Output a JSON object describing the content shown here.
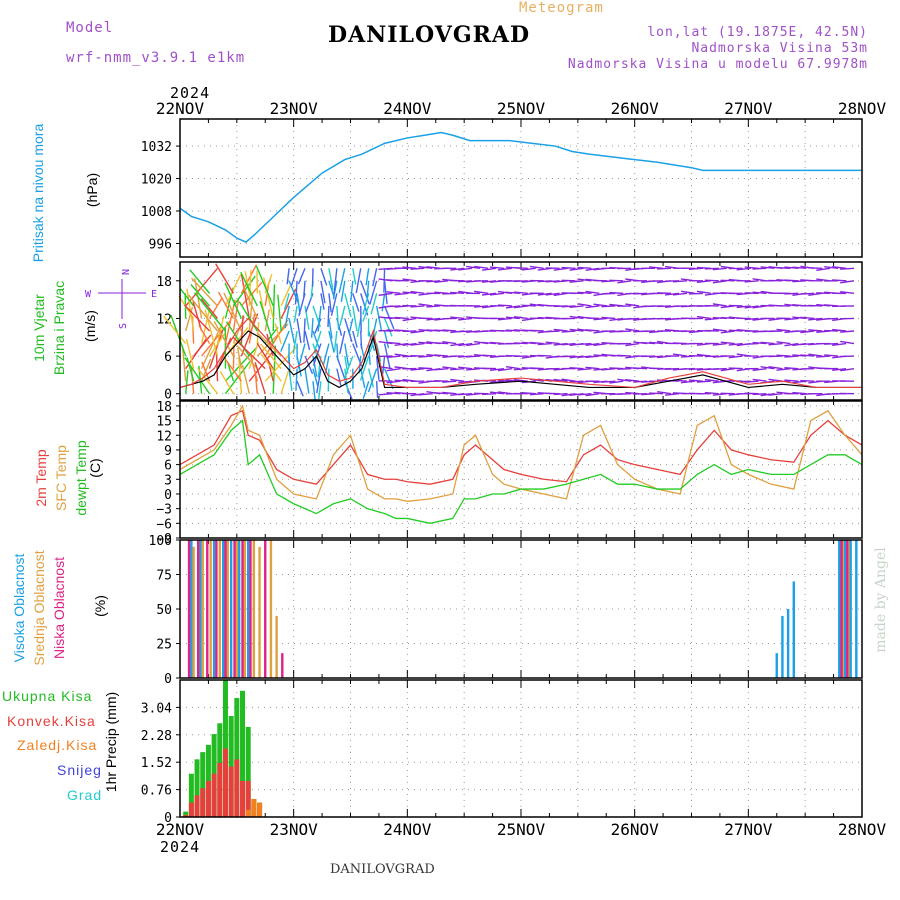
{
  "header": {
    "model_label": "Model",
    "model_name": "wrf-nmm_v3.9.1 e1km",
    "subtitle": "Meteogram",
    "title": "DANILOVGRAD",
    "lonlat": "lon,lat (19.1875E, 42.5N)",
    "altitude": "Nadmorska Visina 53m",
    "model_altitude": "Nadmorska Visina u modelu 67.9978m",
    "year": "2024",
    "footer": "DANILOVGRAD",
    "watermark": "made by Angel"
  },
  "colors": {
    "pressure": "#1aa0e6",
    "temp2m": "#e6403c",
    "sfc": "#e0a040",
    "dewpt": "#22cc22",
    "wind_purple": "#8822dd",
    "precip_total": "#22bb22",
    "precip_conv": "#e6403c",
    "precip_frozen": "#f08020",
    "snow": "#4040e0",
    "hail": "#22cccc",
    "cloud_high": "#1aa0e6",
    "cloud_mid": "#e0a040",
    "cloud_low": "#dd2288"
  },
  "chart_data": [
    {
      "type": "line",
      "panel": "pressure",
      "ylabel_1": "Pritisak na nivou mora",
      "ylabel_2": "(hPa)",
      "x_ticks": [
        "22NOV",
        "23NOV",
        "24NOV",
        "25NOV",
        "26NOV",
        "27NOV",
        "28NOV"
      ],
      "yticks": [
        "1032",
        "1020",
        "1008",
        "996"
      ],
      "ylim": [
        991,
        1042
      ],
      "x": [
        0,
        0.1,
        0.25,
        0.4,
        0.5,
        0.58,
        0.65,
        0.8,
        1.0,
        1.25,
        1.45,
        1.6,
        1.8,
        2.0,
        2.15,
        2.3,
        2.4,
        2.55,
        2.7,
        2.9,
        3.1,
        3.3,
        3.45,
        3.6,
        3.8,
        4.0,
        4.2,
        4.35,
        4.5,
        4.6,
        4.7,
        4.85,
        5.0,
        5.2,
        5.4,
        5.55,
        5.7,
        5.85,
        6.0
      ],
      "series": [
        {
          "values": [
            1009,
            1006,
            1004,
            1001,
            998,
            996.5,
            999,
            1005,
            1013,
            1022,
            1027,
            1029,
            1033,
            1035,
            1036,
            1037,
            1036,
            1034,
            1034,
            1034,
            1033,
            1032,
            1030,
            1029,
            1028,
            1027,
            1026,
            1025,
            1024,
            1023,
            1023,
            1023,
            1023,
            1023,
            1023,
            1023,
            1023,
            1023,
            1023
          ]
        }
      ]
    },
    {
      "type": "line",
      "panel": "wind",
      "ylabel_1": "10m Vjetar",
      "ylabel_1b": "Brzina i Pravac",
      "ylabel_2": "(m/s)",
      "compass": {
        "n": "N",
        "s": "S",
        "w": "W",
        "e": "E"
      },
      "yticks": [
        "18",
        "12",
        "6",
        "0"
      ],
      "ylim": [
        -1,
        21
      ],
      "x": [
        0,
        0.1,
        0.2,
        0.3,
        0.4,
        0.5,
        0.6,
        0.7,
        0.8,
        0.9,
        1.0,
        1.1,
        1.2,
        1.3,
        1.4,
        1.5,
        1.6,
        1.7,
        1.8,
        2.0,
        2.3,
        2.6,
        3.0,
        3.3,
        3.6,
        4.0,
        4.3,
        4.6,
        5.0,
        5.3,
        5.6,
        6.0
      ],
      "series": [
        {
          "name": "speed",
          "values": [
            1,
            1.5,
            2,
            3,
            6,
            8,
            10,
            9,
            7,
            5,
            3,
            4,
            6,
            2,
            1,
            2,
            4,
            9,
            1,
            1,
            1,
            1.5,
            2,
            1.5,
            1,
            1,
            2,
            3,
            1,
            1.5,
            1,
            1
          ]
        },
        {
          "name": "gust",
          "values": [
            1,
            1.5,
            2.5,
            4,
            7,
            10,
            12,
            10,
            8,
            6,
            4,
            5,
            7,
            3,
            2,
            2.5,
            5,
            10,
            1.5,
            1,
            1,
            2,
            2.5,
            2,
            1.5,
            1,
            2.5,
            3.5,
            1.5,
            2,
            1,
            1
          ]
        }
      ]
    },
    {
      "type": "line",
      "panel": "temperature",
      "ylabel_1": "2m Temp",
      "ylabel_1b": "SFC Temp",
      "ylabel_1c": "dewpt Temp",
      "ylabel_2": "(C)",
      "yticks": [
        "18",
        "15",
        "12",
        "9",
        "6",
        "3",
        "0",
        "−3",
        "−6",
        "−9"
      ],
      "ylim": [
        -9,
        19
      ],
      "x": [
        0,
        0.15,
        0.3,
        0.45,
        0.55,
        0.6,
        0.7,
        0.85,
        1.0,
        1.2,
        1.35,
        1.5,
        1.65,
        1.8,
        1.9,
        2.0,
        2.2,
        2.4,
        2.5,
        2.6,
        2.75,
        2.85,
        3.0,
        3.2,
        3.4,
        3.55,
        3.7,
        3.85,
        4.0,
        4.2,
        4.4,
        4.55,
        4.7,
        4.85,
        5.0,
        5.2,
        5.4,
        5.55,
        5.7,
        5.85,
        6.0
      ],
      "series": [
        {
          "name": "temp2m",
          "values": [
            6,
            8,
            10,
            16,
            17,
            12,
            11,
            5,
            3,
            2,
            6,
            10,
            4,
            3,
            3,
            2.5,
            2,
            3,
            8,
            10,
            7,
            5,
            4,
            3,
            2.5,
            8,
            10,
            7,
            6,
            5,
            4,
            9,
            13,
            9,
            8,
            7,
            6.5,
            12,
            15,
            12,
            10
          ]
        },
        {
          "name": "sfc",
          "values": [
            5,
            7,
            9,
            14,
            18,
            13,
            12,
            3,
            0,
            -1,
            8,
            12,
            1,
            -1,
            -1,
            -1.5,
            -1,
            0,
            10,
            12,
            4,
            2,
            1,
            0,
            -1,
            12,
            14,
            6,
            3,
            1,
            0,
            14,
            16,
            6,
            4,
            2,
            1,
            15,
            17,
            12,
            8
          ]
        },
        {
          "name": "dewpt",
          "values": [
            4,
            6,
            8,
            13,
            15,
            6,
            8,
            0,
            -2,
            -4,
            -2,
            -1,
            -3,
            -4,
            -5,
            -5,
            -6,
            -5,
            -1,
            -1,
            0,
            0,
            1,
            1,
            2,
            3,
            4,
            2,
            2,
            1,
            1,
            4,
            6,
            4,
            5,
            4,
            4,
            6,
            8,
            8,
            6
          ]
        }
      ]
    },
    {
      "type": "bar",
      "panel": "cloud",
      "ylabel_1": "Visoka Oblacnost",
      "ylabel_1b": "Srednja Oblacnost",
      "ylabel_1c": "Niska Oblacnost",
      "ylabel_2": "(%)",
      "yticks": [
        "100",
        "75",
        "50",
        "25",
        "0"
      ],
      "ylim": [
        0,
        100
      ],
      "series": [
        {
          "name": "high",
          "x": [
            0.1,
            0.18,
            0.3,
            0.38,
            0.45,
            0.52,
            0.6,
            5.25,
            5.3,
            5.35,
            5.4,
            5.8,
            5.85,
            5.9,
            5.95
          ],
          "values": [
            100,
            100,
            100,
            100,
            100,
            100,
            100,
            18,
            45,
            50,
            70,
            100,
            100,
            100,
            100
          ]
        },
        {
          "name": "mid",
          "x": [
            0.12,
            0.2,
            0.27,
            0.35,
            0.42,
            0.5,
            0.57,
            0.65,
            0.7,
            0.8,
            0.85,
            5.83,
            5.88
          ],
          "values": [
            95,
            100,
            100,
            100,
            100,
            100,
            100,
            100,
            95,
            100,
            45,
            100,
            100
          ]
        },
        {
          "name": "low",
          "x": [
            0.08,
            0.16,
            0.24,
            0.32,
            0.4,
            0.48,
            0.55,
            0.62,
            0.75,
            0.9,
            5.82,
            5.87
          ],
          "values": [
            100,
            100,
            100,
            100,
            100,
            100,
            100,
            100,
            100,
            18,
            100,
            100
          ]
        }
      ]
    },
    {
      "type": "bar",
      "panel": "precip",
      "legend": [
        "Ukupna Kisa",
        "Konvek.Kisa",
        "Zaledj.Kisa",
        "Snijeg",
        "Grad"
      ],
      "ylabel_2": "1hr Precip (mm)",
      "yticks": [
        "3.04",
        "2.28",
        "1.52",
        "0.76",
        "0"
      ],
      "ylim": [
        0,
        3.8
      ],
      "x_ticks": [
        "22NOV",
        "23NOV",
        "24NOV",
        "25NOV",
        "26NOV",
        "27NOV",
        "28NOV"
      ],
      "x": [
        0.05,
        0.1,
        0.15,
        0.2,
        0.25,
        0.3,
        0.35,
        0.4,
        0.45,
        0.5,
        0.55,
        0.6,
        0.65,
        0.7
      ],
      "series": [
        {
          "name": "total",
          "values": [
            0.15,
            1.2,
            1.6,
            1.8,
            2.0,
            2.3,
            2.6,
            3.8,
            2.8,
            3.3,
            3.5,
            2.5,
            0.5,
            0.4
          ]
        },
        {
          "name": "conv",
          "values": [
            0.05,
            0.4,
            0.6,
            0.8,
            1.0,
            1.2,
            1.5,
            1.9,
            1.4,
            1.6,
            1.0,
            1.0,
            0.3,
            0.3
          ]
        },
        {
          "name": "frozen",
          "values": [
            0,
            0,
            0,
            0,
            0,
            0,
            0,
            0,
            0,
            0,
            0,
            0.2,
            0.5,
            0.4
          ]
        }
      ]
    }
  ]
}
